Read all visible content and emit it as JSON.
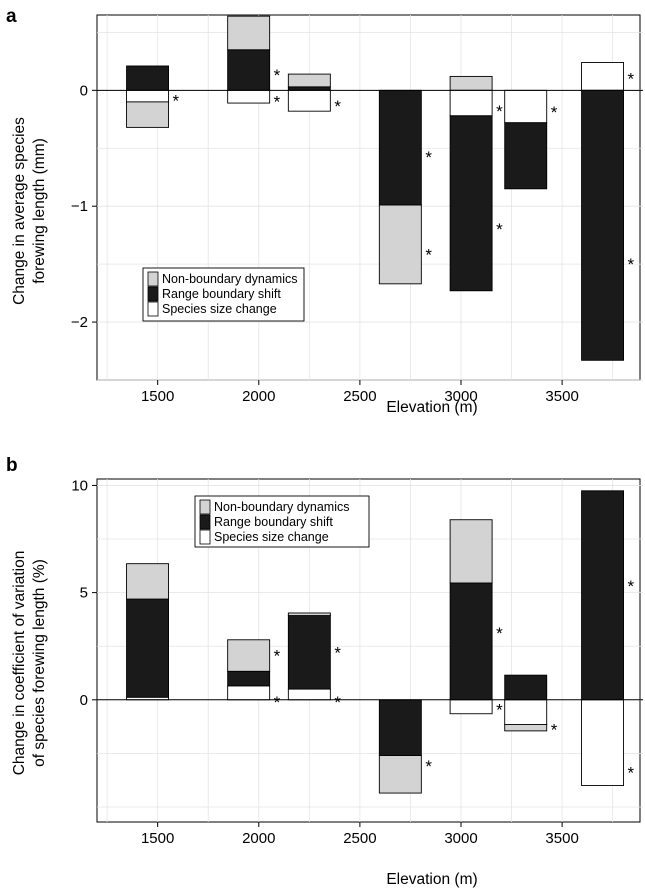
{
  "chart_data": [
    {
      "type": "bar",
      "stacked": true,
      "panel_label": "a",
      "xlabel": "Elevation (m)",
      "ylabel_lines": [
        "Change in average species",
        "forewing length (mm)"
      ],
      "xlim": [
        1200,
        3900
      ],
      "ylim": [
        -2.5,
        0.65
      ],
      "xticks": [
        1500,
        2000,
        2500,
        3000,
        3500
      ],
      "yticks": [
        0,
        -1,
        -2
      ],
      "ytick_labels": [
        "0",
        "−1",
        "−2"
      ],
      "grid": true,
      "legend_position": "lower-left",
      "legend": [
        {
          "name": "Non-boundary dynamics",
          "color": "#d3d3d3"
        },
        {
          "name": "Range boundary shift",
          "color": "#1a1a1a"
        },
        {
          "name": "Species size change",
          "color": "#ffffff"
        }
      ],
      "bars": [
        {
          "x": 1450,
          "components": [
            {
              "component": "Range boundary shift",
              "start": 0,
              "end": 0.21
            },
            {
              "component": "Species size change",
              "start": 0,
              "end": -0.1
            },
            {
              "component": "Non-boundary dynamics",
              "start": -0.1,
              "end": -0.32
            }
          ],
          "asterisks": [
            {
              "y": -0.07
            }
          ]
        },
        {
          "x": 1950,
          "components": [
            {
              "component": "Range boundary shift",
              "start": 0,
              "end": 0.35
            },
            {
              "component": "Non-boundary dynamics",
              "start": 0.35,
              "end": 0.64
            },
            {
              "component": "Species size change",
              "start": 0,
              "end": -0.11
            }
          ],
          "asterisks": [
            {
              "y": 0.15
            },
            {
              "y": -0.08
            }
          ]
        },
        {
          "x": 2250,
          "components": [
            {
              "component": "Range boundary shift",
              "start": 0,
              "end": 0.03
            },
            {
              "component": "Non-boundary dynamics",
              "start": 0.03,
              "end": 0.14
            },
            {
              "component": "Species size change",
              "start": 0,
              "end": -0.18
            }
          ],
          "asterisks": [
            {
              "y": -0.12
            }
          ]
        },
        {
          "x": 2700,
          "components": [
            {
              "component": "Range boundary shift",
              "start": 0,
              "end": -0.99
            },
            {
              "component": "Non-boundary dynamics",
              "start": -0.99,
              "end": -1.67
            }
          ],
          "asterisks": [
            {
              "y": -0.56
            },
            {
              "y": -1.4
            }
          ]
        },
        {
          "x": 3050,
          "components": [
            {
              "component": "Non-boundary dynamics",
              "start": 0,
              "end": 0.12
            },
            {
              "component": "Species size change",
              "start": 0,
              "end": -0.22
            },
            {
              "component": "Range boundary shift",
              "start": -0.22,
              "end": -1.73
            }
          ],
          "asterisks": [
            {
              "y": -0.16
            },
            {
              "y": -1.18
            }
          ]
        },
        {
          "x": 3320,
          "components": [
            {
              "component": "Species size change",
              "start": 0,
              "end": -0.28
            },
            {
              "component": "Range boundary shift",
              "start": -0.28,
              "end": -0.85
            }
          ],
          "asterisks": [
            {
              "y": -0.17
            }
          ]
        },
        {
          "x": 3700,
          "components": [
            {
              "component": "Species size change",
              "start": 0,
              "end": 0.24
            },
            {
              "component": "Range boundary shift",
              "start": 0,
              "end": -2.33
            }
          ],
          "asterisks": [
            {
              "y": 0.12
            },
            {
              "y": -1.48
            }
          ]
        }
      ]
    },
    {
      "type": "bar",
      "stacked": true,
      "panel_label": "b",
      "xlabel": "Elevation (m)",
      "ylabel_lines": [
        "Change in coefficient of variation",
        "of species forewing length (%)"
      ],
      "xlim": [
        1200,
        3900
      ],
      "ylim": [
        -5.7,
        10.3
      ],
      "xticks": [
        1500,
        2000,
        2500,
        3000,
        3500
      ],
      "yticks": [
        10,
        5,
        0
      ],
      "ytick_labels": [
        "10",
        "5",
        "0"
      ],
      "grid": true,
      "legend_position": "top-center",
      "legend": [
        {
          "name": "Non-boundary dynamics",
          "color": "#d3d3d3"
        },
        {
          "name": "Range boundary shift",
          "color": "#1a1a1a"
        },
        {
          "name": "Species size change",
          "color": "#ffffff"
        }
      ],
      "bars": [
        {
          "x": 1450,
          "components": [
            {
              "component": "Species size change",
              "start": 0,
              "end": 0.12
            },
            {
              "component": "Range boundary shift",
              "start": 0.12,
              "end": 4.7
            },
            {
              "component": "Non-boundary dynamics",
              "start": 4.7,
              "end": 6.35
            }
          ],
          "asterisks": []
        },
        {
          "x": 1950,
          "components": [
            {
              "component": "Species size change",
              "start": 0,
              "end": 0.65
            },
            {
              "component": "Range boundary shift",
              "start": 0.65,
              "end": 1.33
            },
            {
              "component": "Non-boundary dynamics",
              "start": 1.33,
              "end": 2.8
            }
          ],
          "asterisks": [
            {
              "y": 2.15
            },
            {
              "y": 0.0
            }
          ]
        },
        {
          "x": 2250,
          "components": [
            {
              "component": "Species size change",
              "start": 0,
              "end": 0.5
            },
            {
              "component": "Range boundary shift",
              "start": 0.5,
              "end": 3.93
            },
            {
              "component": "Non-boundary dynamics",
              "start": 3.93,
              "end": 4.05
            }
          ],
          "asterisks": [
            {
              "y": 2.3
            },
            {
              "y": 0.0
            }
          ]
        },
        {
          "x": 2700,
          "components": [
            {
              "component": "Range boundary shift",
              "start": 0,
              "end": -2.6
            },
            {
              "component": "Non-boundary dynamics",
              "start": -2.6,
              "end": -4.35
            }
          ],
          "asterisks": [
            {
              "y": -3.0
            }
          ]
        },
        {
          "x": 3050,
          "components": [
            {
              "component": "Range boundary shift",
              "start": 0,
              "end": 5.45
            },
            {
              "component": "Non-boundary dynamics",
              "start": 5.45,
              "end": 8.4
            },
            {
              "component": "Species size change",
              "start": 0,
              "end": -0.65
            }
          ],
          "asterisks": [
            {
              "y": 3.2
            },
            {
              "y": -0.35
            }
          ]
        },
        {
          "x": 3320,
          "components": [
            {
              "component": "Range boundary shift",
              "start": 0,
              "end": 1.15
            },
            {
              "component": "Species size change",
              "start": 0,
              "end": -1.15
            },
            {
              "component": "Non-boundary dynamics",
              "start": -1.15,
              "end": -1.45
            }
          ],
          "asterisks": [
            {
              "y": -1.3
            }
          ]
        },
        {
          "x": 3700,
          "components": [
            {
              "component": "Range boundary shift",
              "start": 0,
              "end": 9.75
            },
            {
              "component": "Species size change",
              "start": 0,
              "end": -4.0
            }
          ],
          "asterisks": [
            {
              "y": 5.4
            },
            {
              "y": -3.3
            }
          ]
        }
      ]
    }
  ]
}
